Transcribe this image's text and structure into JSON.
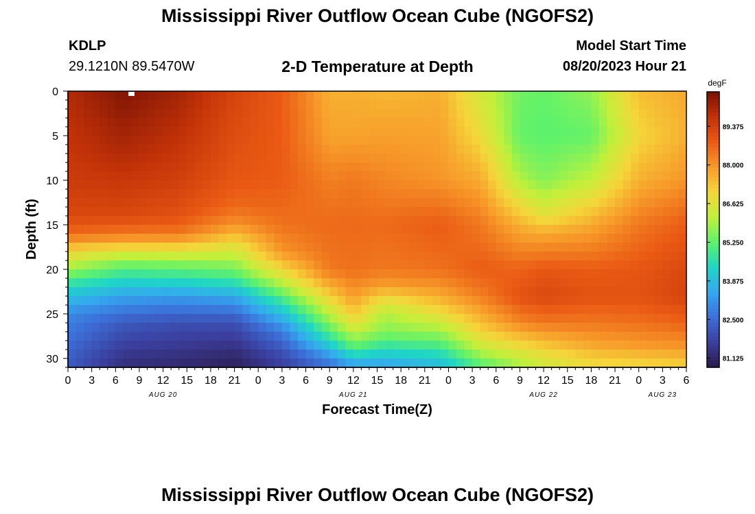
{
  "header": {
    "title": "Mississippi River Outflow Ocean Cube (NGOFS2)",
    "station_id": "KDLP",
    "station_coords": "29.1210N  89.5470W",
    "model_start_label": "Model Start Time",
    "model_start_value": "08/20/2023 Hour 21"
  },
  "footer": {
    "title": "Mississippi River Outflow Ocean Cube (NGOFS2)"
  },
  "chart_data": {
    "type": "heatmap",
    "title": "2-D Temperature at Depth",
    "xlabel": "Forecast Time(Z)",
    "ylabel": "Depth (ft)",
    "x_range_hours_from_aug20_00z": [
      0,
      78
    ],
    "ylim": [
      31,
      0
    ],
    "x_ticks": [
      "0",
      "3",
      "6",
      "9",
      "12",
      "15",
      "18",
      "21",
      "0",
      "3",
      "6",
      "9",
      "12",
      "15",
      "18",
      "21",
      "0",
      "3",
      "6",
      "9",
      "12",
      "15",
      "18",
      "21",
      "0",
      "3",
      "6"
    ],
    "x_date_labels": [
      {
        "label": "AUG 20",
        "hour": 12
      },
      {
        "label": "AUG 21",
        "hour": 36
      },
      {
        "label": "AUG 22",
        "hour": 60
      },
      {
        "label": "AUG 23",
        "hour": 75
      }
    ],
    "y_ticks": [
      0,
      5,
      10,
      15,
      20,
      25,
      30
    ],
    "colorbar": {
      "unit": "degF",
      "min": 80.8,
      "max": 90.6,
      "ticks": [
        "89.375",
        "88.000",
        "86.625",
        "85.250",
        "83.875",
        "82.500",
        "81.125"
      ],
      "colors": [
        "#2b1a4a",
        "#3b3f9e",
        "#3c6fd8",
        "#35a8f0",
        "#1ed6c6",
        "#5ff26b",
        "#c2f03a",
        "#f5d63a",
        "#f79a2a",
        "#ea5a14",
        "#c23208",
        "#7a1204"
      ]
    },
    "profiles": [
      {
        "hour": 0,
        "temps": [
          [
            0,
            89.9
          ],
          [
            10,
            89.5
          ],
          [
            14,
            89.2
          ],
          [
            16,
            88.6
          ],
          [
            18,
            87.0
          ],
          [
            20,
            85.8
          ],
          [
            22,
            84.4
          ],
          [
            25,
            83.0
          ],
          [
            30,
            82.3
          ],
          [
            31,
            82.2
          ]
        ]
      },
      {
        "hour": 7,
        "temps": [
          [
            0,
            90.5
          ],
          [
            6,
            90.0
          ],
          [
            10,
            89.6
          ],
          [
            14,
            89.2
          ],
          [
            16,
            88.4
          ],
          [
            17,
            87.6
          ],
          [
            18,
            86.6
          ],
          [
            19,
            85.7
          ],
          [
            21,
            84.5
          ],
          [
            23,
            83.4
          ],
          [
            26,
            82.2
          ],
          [
            30,
            81.4
          ],
          [
            31,
            81.3
          ]
        ]
      },
      {
        "hour": 14,
        "temps": [
          [
            0,
            90.1
          ],
          [
            10,
            89.4
          ],
          [
            14,
            89.0
          ],
          [
            16,
            88.4
          ],
          [
            17,
            87.6
          ],
          [
            18,
            86.7
          ],
          [
            19,
            85.8
          ],
          [
            21,
            84.6
          ],
          [
            23,
            83.3
          ],
          [
            26,
            82.0
          ],
          [
            30,
            81.3
          ],
          [
            31,
            81.2
          ]
        ]
      },
      {
        "hour": 21,
        "temps": [
          [
            0,
            89.3
          ],
          [
            10,
            88.9
          ],
          [
            13,
            88.6
          ],
          [
            15,
            88.0
          ],
          [
            16,
            87.5
          ],
          [
            17,
            86.9
          ],
          [
            19,
            85.9
          ],
          [
            21,
            84.9
          ],
          [
            23,
            83.5
          ],
          [
            26,
            82.0
          ],
          [
            30,
            81.1
          ],
          [
            31,
            81.0
          ]
        ]
      },
      {
        "hour": 27,
        "temps": [
          [
            0,
            88.8
          ],
          [
            10,
            88.8
          ],
          [
            15,
            88.5
          ],
          [
            18,
            88.0
          ],
          [
            20,
            87.0
          ],
          [
            22,
            85.8
          ],
          [
            24,
            84.5
          ],
          [
            27,
            82.8
          ],
          [
            30,
            81.8
          ],
          [
            31,
            81.7
          ]
        ]
      },
      {
        "hour": 33,
        "temps": [
          [
            0,
            87.6
          ],
          [
            5,
            87.8
          ],
          [
            10,
            88.3
          ],
          [
            15,
            88.6
          ],
          [
            20,
            88.4
          ],
          [
            22,
            87.6
          ],
          [
            24,
            86.6
          ],
          [
            26,
            85.6
          ],
          [
            28,
            84.5
          ],
          [
            30,
            83.0
          ],
          [
            31,
            82.6
          ]
        ]
      },
      {
        "hour": 36,
        "temps": [
          [
            0,
            87.6
          ],
          [
            5,
            87.8
          ],
          [
            10,
            88.4
          ],
          [
            15,
            88.6
          ],
          [
            20,
            88.5
          ],
          [
            23,
            87.9
          ],
          [
            25,
            87.2
          ],
          [
            27,
            86.2
          ],
          [
            29,
            85.0
          ],
          [
            30,
            84.0
          ],
          [
            31,
            83.3
          ]
        ]
      },
      {
        "hour": 40,
        "temps": [
          [
            0,
            87.5
          ],
          [
            10,
            88.2
          ],
          [
            15,
            88.6
          ],
          [
            20,
            88.4
          ],
          [
            22,
            87.8
          ],
          [
            23,
            87.0
          ],
          [
            25,
            86.0
          ],
          [
            27,
            85.6
          ],
          [
            29,
            84.5
          ],
          [
            31,
            83.3
          ]
        ]
      },
      {
        "hour": 47,
        "temps": [
          [
            0,
            87.6
          ],
          [
            10,
            88.0
          ],
          [
            15,
            88.8
          ],
          [
            20,
            88.5
          ],
          [
            22,
            88.0
          ],
          [
            24,
            87.3
          ],
          [
            26,
            86.3
          ],
          [
            28,
            85.3
          ],
          [
            30,
            84.2
          ],
          [
            31,
            83.8
          ]
        ]
      },
      {
        "hour": 52,
        "temps": [
          [
            0,
            86.4
          ],
          [
            5,
            86.9
          ],
          [
            10,
            87.7
          ],
          [
            15,
            88.4
          ],
          [
            20,
            88.8
          ],
          [
            23,
            88.3
          ],
          [
            26,
            87.4
          ],
          [
            28,
            86.6
          ],
          [
            30,
            85.6
          ],
          [
            31,
            85.0
          ]
        ]
      },
      {
        "hour": 57,
        "temps": [
          [
            0,
            85.4
          ],
          [
            5,
            85.3
          ],
          [
            10,
            86.0
          ],
          [
            15,
            87.6
          ],
          [
            20,
            88.7
          ],
          [
            23,
            89.0
          ],
          [
            26,
            88.2
          ],
          [
            28,
            87.2
          ],
          [
            30,
            86.2
          ],
          [
            31,
            85.9
          ]
        ]
      },
      {
        "hour": 60,
        "temps": [
          [
            0,
            85.3
          ],
          [
            5,
            85.2
          ],
          [
            10,
            85.6
          ],
          [
            14,
            86.7
          ],
          [
            16,
            87.7
          ],
          [
            20,
            88.9
          ],
          [
            23,
            89.2
          ],
          [
            26,
            88.4
          ],
          [
            28,
            87.5
          ],
          [
            30,
            86.6
          ],
          [
            31,
            86.4
          ]
        ]
      },
      {
        "hour": 66,
        "temps": [
          [
            0,
            85.7
          ],
          [
            5,
            85.3
          ],
          [
            10,
            86.2
          ],
          [
            15,
            87.7
          ],
          [
            20,
            88.8
          ],
          [
            23,
            89.0
          ],
          [
            26,
            88.4
          ],
          [
            29,
            87.6
          ],
          [
            30,
            87.1
          ],
          [
            31,
            86.9
          ]
        ]
      },
      {
        "hour": 72,
        "temps": [
          [
            0,
            87.4
          ],
          [
            5,
            87.0
          ],
          [
            10,
            87.6
          ],
          [
            15,
            88.4
          ],
          [
            20,
            88.9
          ],
          [
            23,
            89.0
          ],
          [
            26,
            88.5
          ],
          [
            29,
            87.8
          ],
          [
            30,
            87.2
          ],
          [
            31,
            87.0
          ]
        ]
      },
      {
        "hour": 78,
        "temps": [
          [
            0,
            87.7
          ],
          [
            5,
            87.6
          ],
          [
            10,
            88.0
          ],
          [
            15,
            88.8
          ],
          [
            20,
            89.2
          ],
          [
            23,
            89.3
          ],
          [
            26,
            88.7
          ],
          [
            29,
            87.9
          ],
          [
            30,
            87.4
          ],
          [
            31,
            87.1
          ]
        ]
      }
    ]
  }
}
